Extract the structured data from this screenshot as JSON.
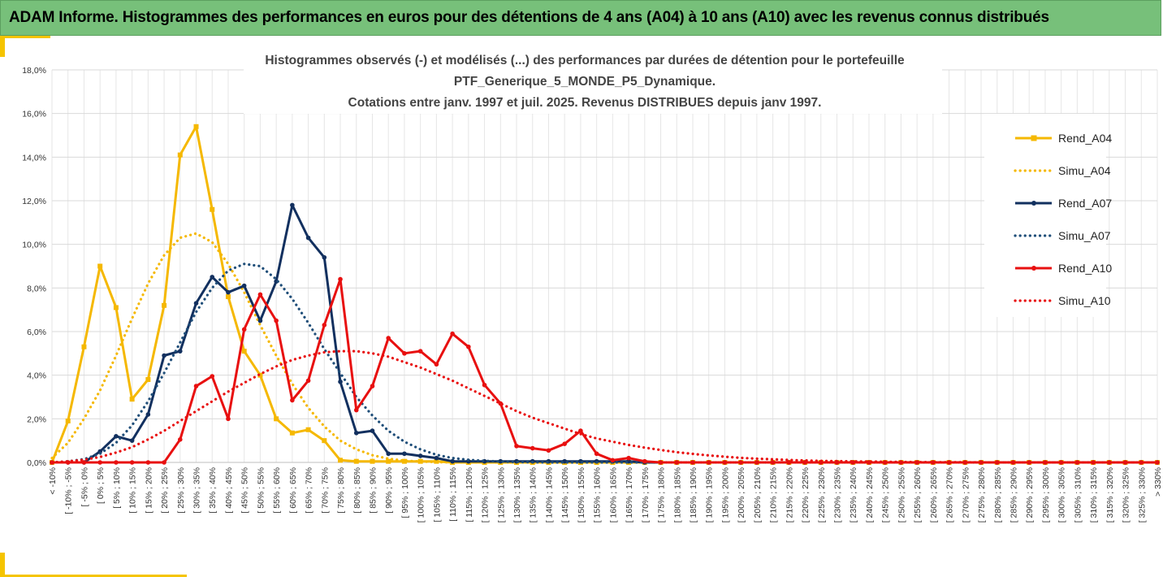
{
  "banner": {
    "title": "ADAM Informe. Histogrammes des performances en euros pour des détentions de 4 ans (A04) à 10 ans (A10) avec les revenus connus distribués"
  },
  "colors": {
    "banner": "#77c07a",
    "accent": "#f5c400",
    "A04": "#f5b800",
    "A07": "#12305f",
    "A10": "#e81010"
  },
  "chart_data": {
    "type": "line",
    "title_lines": [
      "Histogrammes observés (-) et modélisés (...) des performances par durées de détention pour le portefeuille",
      "PTF_Generique_5_MONDE_P5_Dynamique.",
      "Cotations entre janv. 1997 et juil. 2025. Revenus DISTRIBUES depuis janv 1997."
    ],
    "xlabel": "",
    "ylabel": "",
    "ylim": [
      0,
      18
    ],
    "yticks": [
      "0,0%",
      "2,0%",
      "4,0%",
      "6,0%",
      "8,0%",
      "10,0%",
      "12,0%",
      "14,0%",
      "16,0%",
      "18,0%"
    ],
    "grid": true,
    "legend_position": "right",
    "categories": [
      "< -10%",
      "[ -10% ; -5%",
      "[ -5% ; 0%",
      "[ 0% ; 5%",
      "[ 5% ; 10%",
      "[ 10% ; 15%",
      "[ 15% ; 20%",
      "[ 20% ; 25%",
      "[ 25% ; 30%",
      "[ 30% ; 35%",
      "[ 35% ; 40%",
      "[ 40% ; 45%",
      "[ 45% ; 50%",
      "[ 50% ; 55%",
      "[ 55% ; 60%",
      "[ 60% ; 65%",
      "[ 65% ; 70%",
      "[ 70% ; 75%",
      "[ 75% ; 80%",
      "[ 80% ; 85%",
      "[ 85% ; 90%",
      "[ 90% ; 95%",
      "[ 95% ; 100%",
      "[ 100% ; 105%",
      "[ 105% ; 110%",
      "[ 110% ; 115%",
      "[ 115% ; 120%",
      "[ 120% ; 125%",
      "[ 125% ; 130%",
      "[ 130% ; 135%",
      "[ 135% ; 140%",
      "[ 140% ; 145%",
      "[ 145% ; 150%",
      "[ 150% ; 155%",
      "[ 155% ; 160%",
      "[ 160% ; 165%",
      "[ 165% ; 170%",
      "[ 170% ; 175%",
      "[ 175% ; 180%",
      "[ 180% ; 185%",
      "[ 185% ; 190%",
      "[ 190% ; 195%",
      "[ 195% ; 200%",
      "[ 200% ; 205%",
      "[ 205% ; 210%",
      "[ 210% ; 215%",
      "[ 215% ; 220%",
      "[ 220% ; 225%",
      "[ 225% ; 230%",
      "[ 230% ; 235%",
      "[ 235% ; 240%",
      "[ 240% ; 245%",
      "[ 245% ; 250%",
      "[ 250% ; 255%",
      "[ 255% ; 260%",
      "[ 260% ; 265%",
      "[ 265% ; 270%",
      "[ 270% ; 275%",
      "[ 275% ; 280%",
      "[ 280% ; 285%",
      "[ 285% ; 290%",
      "[ 290% ; 295%",
      "[ 295% ; 300%",
      "[ 300% ; 305%",
      "[ 305% ; 310%",
      "[ 310% ; 315%",
      "[ 315% ; 320%",
      "[ 320% ; 325%",
      "[ 325% ; 330%",
      "> 330%"
    ],
    "series": [
      {
        "name": "Rend_A04",
        "style": "solid",
        "marker": "square",
        "color": "#f5b800",
        "values": [
          0.0,
          1.9,
          5.3,
          9.0,
          7.1,
          2.9,
          3.8,
          7.2,
          14.1,
          15.4,
          11.6,
          7.6,
          5.1,
          4.0,
          2.0,
          1.35,
          1.5,
          1.0,
          0.1,
          0.05,
          0.05,
          0.05,
          0.05,
          0.05,
          0.05,
          0.0,
          0.0,
          0.0,
          0.0,
          0.0,
          0.0,
          0.0,
          0.0,
          0.0,
          0.0,
          0.0,
          0.0,
          0.0,
          0.0,
          0.0,
          0.0,
          0.0,
          0.0,
          0.0,
          0.0,
          0.0,
          0.0,
          0.0,
          0.0,
          0.0,
          0.0,
          0.0,
          0.0,
          0.0,
          0.0,
          0.0,
          0.0,
          0.0,
          0.0,
          0.0,
          0.0,
          0.0,
          0.0,
          0.0,
          0.0,
          0.0,
          0.0,
          0.0,
          0.0,
          0.0
        ]
      },
      {
        "name": "Simu_A04",
        "style": "dotted",
        "marker": "none",
        "color": "#f5b800",
        "values": [
          0.2,
          0.9,
          2.0,
          3.3,
          4.9,
          6.6,
          8.2,
          9.5,
          10.3,
          10.5,
          10.1,
          9.1,
          7.8,
          6.3,
          4.9,
          3.6,
          2.5,
          1.65,
          1.0,
          0.6,
          0.33,
          0.17,
          0.08,
          0.04,
          0.02,
          0.0,
          0.0,
          0.0,
          0.0,
          0.0,
          0.0,
          0.0,
          0.0,
          0.0,
          0.0,
          0.0,
          0.0,
          0.0,
          0.0,
          0.0,
          0.0,
          0.0,
          0.0,
          0.0,
          0.0,
          0.0,
          0.0,
          0.0,
          0.0,
          0.0,
          0.0,
          0.0,
          0.0,
          0.0,
          0.0,
          0.0,
          0.0,
          0.0,
          0.0,
          0.0,
          0.0,
          0.0,
          0.0,
          0.0,
          0.0,
          0.0,
          0.0,
          0.0,
          0.0,
          0.0
        ]
      },
      {
        "name": "Rend_A07",
        "style": "solid",
        "marker": "circle",
        "color": "#12305f",
        "values": [
          0.0,
          0.0,
          0.0,
          0.5,
          1.2,
          1.0,
          2.2,
          4.9,
          5.1,
          7.3,
          8.5,
          7.8,
          8.1,
          6.5,
          8.3,
          11.8,
          10.3,
          9.4,
          3.7,
          1.35,
          1.45,
          0.4,
          0.4,
          0.3,
          0.2,
          0.05,
          0.05,
          0.05,
          0.05,
          0.05,
          0.05,
          0.05,
          0.05,
          0.05,
          0.05,
          0.05,
          0.05,
          0.0,
          0.0,
          0.0,
          0.0,
          0.0,
          0.0,
          0.0,
          0.0,
          0.0,
          0.0,
          0.0,
          0.0,
          0.0,
          0.0,
          0.0,
          0.0,
          0.0,
          0.0,
          0.0,
          0.0,
          0.0,
          0.0,
          0.0,
          0.0,
          0.0,
          0.0,
          0.0,
          0.0,
          0.0,
          0.0,
          0.0,
          0.0,
          0.0
        ]
      },
      {
        "name": "Simu_A07",
        "style": "dotted",
        "marker": "none",
        "color": "#1f4e79",
        "values": [
          0.0,
          0.05,
          0.15,
          0.4,
          0.9,
          1.7,
          2.8,
          4.1,
          5.5,
          6.9,
          8.0,
          8.8,
          9.1,
          9.0,
          8.4,
          7.5,
          6.4,
          5.2,
          4.1,
          3.0,
          2.15,
          1.45,
          0.95,
          0.6,
          0.35,
          0.2,
          0.12,
          0.07,
          0.04,
          0.02,
          0.01,
          0.0,
          0.0,
          0.0,
          0.0,
          0.0,
          0.0,
          0.0,
          0.0,
          0.0,
          0.0,
          0.0,
          0.0,
          0.0,
          0.0,
          0.0,
          0.0,
          0.0,
          0.0,
          0.0,
          0.0,
          0.0,
          0.0,
          0.0,
          0.0,
          0.0,
          0.0,
          0.0,
          0.0,
          0.0,
          0.0,
          0.0,
          0.0,
          0.0,
          0.0,
          0.0,
          0.0,
          0.0,
          0.0,
          0.0
        ]
      },
      {
        "name": "Rend_A10",
        "style": "solid",
        "marker": "circle",
        "color": "#e81010",
        "values": [
          0.0,
          0.0,
          0.0,
          0.0,
          0.0,
          0.0,
          0.0,
          0.0,
          1.05,
          3.5,
          3.95,
          2.0,
          6.1,
          7.7,
          6.5,
          2.85,
          3.75,
          6.3,
          8.4,
          2.4,
          3.5,
          5.7,
          5.0,
          5.1,
          4.5,
          5.9,
          5.3,
          3.55,
          2.7,
          0.75,
          0.65,
          0.55,
          0.85,
          1.45,
          0.4,
          0.1,
          0.2,
          0.05,
          0.0,
          0.0,
          0.0,
          0.0,
          0.0,
          0.0,
          0.0,
          0.0,
          0.0,
          0.0,
          0.0,
          0.0,
          0.0,
          0.0,
          0.0,
          0.0,
          0.0,
          0.0,
          0.0,
          0.0,
          0.0,
          0.0,
          0.0,
          0.0,
          0.0,
          0.0,
          0.0,
          0.0,
          0.0,
          0.0,
          0.0,
          0.0
        ]
      },
      {
        "name": "Simu_A10",
        "style": "dotted",
        "marker": "none",
        "color": "#e81010",
        "values": [
          0.0,
          0.05,
          0.12,
          0.25,
          0.45,
          0.7,
          1.05,
          1.45,
          1.9,
          2.35,
          2.8,
          3.25,
          3.65,
          4.05,
          4.4,
          4.7,
          4.9,
          5.05,
          5.1,
          5.1,
          5.0,
          4.85,
          4.6,
          4.35,
          4.05,
          3.75,
          3.4,
          3.05,
          2.7,
          2.35,
          2.05,
          1.8,
          1.55,
          1.3,
          1.1,
          0.95,
          0.8,
          0.68,
          0.57,
          0.47,
          0.39,
          0.32,
          0.26,
          0.21,
          0.17,
          0.14,
          0.11,
          0.09,
          0.07,
          0.06,
          0.05,
          0.04,
          0.03,
          0.02,
          0.02,
          0.01,
          0.01,
          0.01,
          0.0,
          0.0,
          0.0,
          0.0,
          0.0,
          0.0,
          0.0,
          0.0,
          0.0,
          0.0,
          0.0,
          0.0
        ]
      }
    ]
  }
}
